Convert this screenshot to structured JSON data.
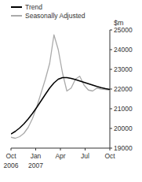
{
  "chart_data": {
    "type": "line",
    "ylabel": "$m",
    "x": [
      0,
      0.5217391304347826,
      1.0434782608695652,
      1.565217391304348,
      2.0869565217391304,
      2.608695652173913,
      3.130434782608696,
      3.652173913043478,
      4.173913043478261,
      4.695652173913043,
      5.217391304347826,
      5.739130434782608,
      6.260869565217391,
      6.782608695652174,
      7.304347826086957,
      7.826086956521739,
      8.347826086956522,
      8.869565217391305,
      9.391304347826088,
      9.91304347826087,
      10.434782608695652,
      10.956521739130435,
      11.478260869565217,
      12
    ],
    "series": [
      {
        "name": "Seasonally Adjusted",
        "color": "#aaaaaa",
        "values": [
          19550,
          19500,
          19580,
          19750,
          20050,
          20500,
          21100,
          21800,
          22500,
          23300,
          24750,
          24000,
          22800,
          21900,
          22050,
          22500,
          22650,
          22200,
          21950,
          21900,
          22050,
          22000,
          21980,
          21950
        ]
      },
      {
        "name": "Trend",
        "color": "#000000",
        "values": [
          19720,
          19850,
          20020,
          20230,
          20480,
          20760,
          21070,
          21400,
          21730,
          22050,
          22310,
          22500,
          22580,
          22580,
          22540,
          22480,
          22410,
          22340,
          22270,
          22200,
          22130,
          22070,
          22020,
          21980
        ]
      }
    ],
    "xlim": [
      0,
      12
    ],
    "xticks": [
      {
        "value": 0,
        "label": "Oct"
      },
      {
        "value": 3,
        "label": "Jan"
      },
      {
        "value": 6,
        "label": "Apr"
      },
      {
        "value": 9,
        "label": "Jul"
      },
      {
        "value": 12,
        "label": "Oct"
      }
    ],
    "annotations": [
      {
        "text": "2006",
        "x": 0
      },
      {
        "text": "2007",
        "x": 3
      }
    ],
    "ylim": [
      19000,
      25000
    ],
    "yticks": [
      19000,
      20000,
      21000,
      22000,
      23000,
      24000,
      25000
    ],
    "grid": false,
    "legend": "upper left"
  }
}
